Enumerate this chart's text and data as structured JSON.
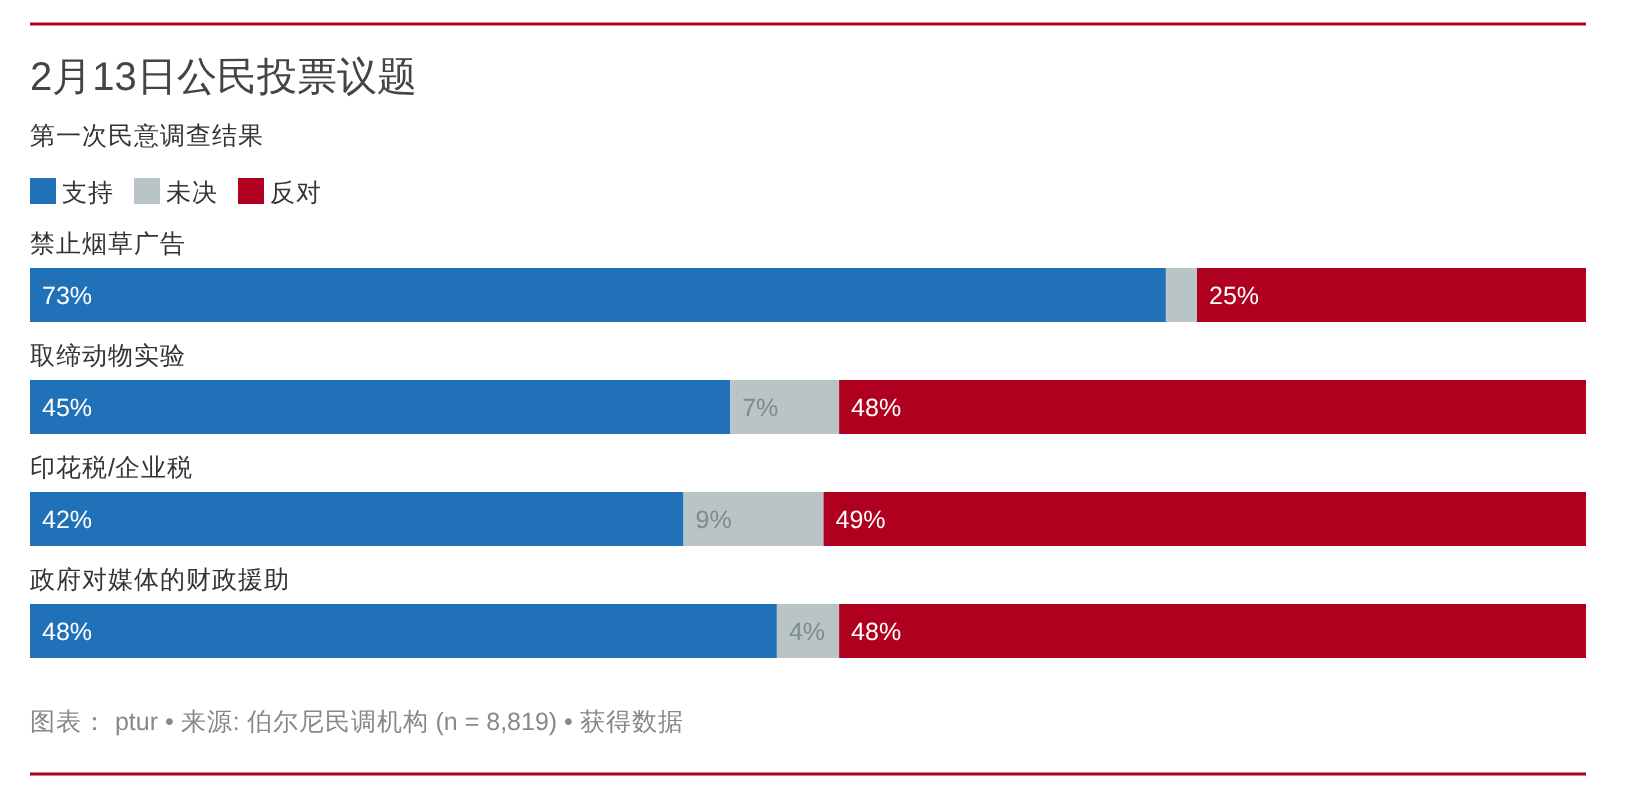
{
  "chart_data": {
    "type": "bar",
    "orientation": "horizontal",
    "stacked": true,
    "title": "2月13日公民投票议题",
    "subtitle": "第一次民意调查结果",
    "categories": [
      "禁止烟草广告",
      "取缔动物实验",
      "印花税/企业税",
      "政府对媒体的财政援助"
    ],
    "series": [
      {
        "name": "支持",
        "color": "#2171b9",
        "values": [
          73,
          45,
          42,
          48
        ],
        "value_labels": [
          "73%",
          "45%",
          "42%",
          "48%"
        ]
      },
      {
        "name": "未决",
        "color": "#b9c4c7",
        "values": [
          2,
          7,
          9,
          4
        ],
        "value_labels": [
          null,
          "7%",
          "9%",
          "4%"
        ]
      },
      {
        "name": "反对",
        "color": "#b0001f",
        "values": [
          25,
          48,
          49,
          48
        ],
        "value_labels": [
          "25%",
          "48%",
          "49%",
          "48%"
        ]
      }
    ],
    "xlim": [
      0,
      100
    ],
    "legend": "top left",
    "annotations": [
      "图表： ptur • 来源: 伯尔尼民调机构 (n = 8,819) • 获得数据"
    ]
  }
}
